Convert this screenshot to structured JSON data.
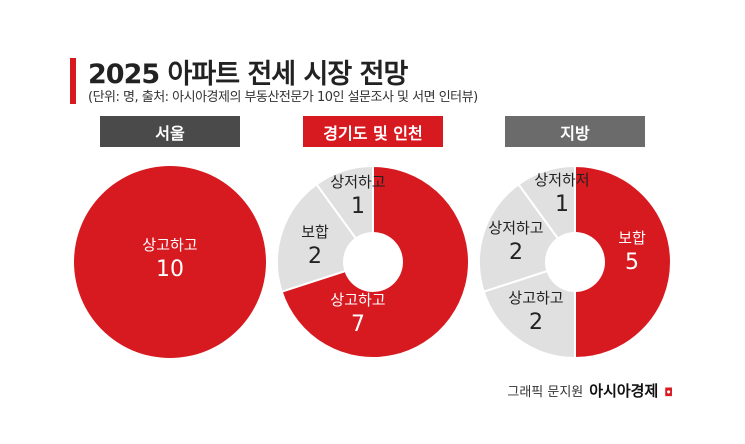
{
  "title": "2025 아파트 전세 시장 전망",
  "subtitle": "(단위: 명, 출처: 아시아경제의 부동산전문가 10인 설문조사 및 서면 인터뷰)",
  "credit": {
    "prefix": "그래픽 문지원",
    "brand": "아시아경제",
    "mark": "◘"
  },
  "colors": {
    "red": "#d71920",
    "gray": "#e0e0e0",
    "dark": "#4a4a4a"
  },
  "chart_data": [
    {
      "type": "pie",
      "title": "서울",
      "slices": [
        {
          "label": "상고하고",
          "value": 10
        }
      ]
    },
    {
      "type": "pie",
      "title": "경기도 및 인천",
      "slices": [
        {
          "label": "상고하고",
          "value": 7
        },
        {
          "label": "보합",
          "value": 2
        },
        {
          "label": "상저하고",
          "value": 1
        }
      ]
    },
    {
      "type": "pie",
      "title": "지방",
      "slices": [
        {
          "label": "보합",
          "value": 5
        },
        {
          "label": "상고하고",
          "value": 2
        },
        {
          "label": "상저하고",
          "value": 2
        },
        {
          "label": "상저하저",
          "value": 1
        }
      ]
    }
  ]
}
